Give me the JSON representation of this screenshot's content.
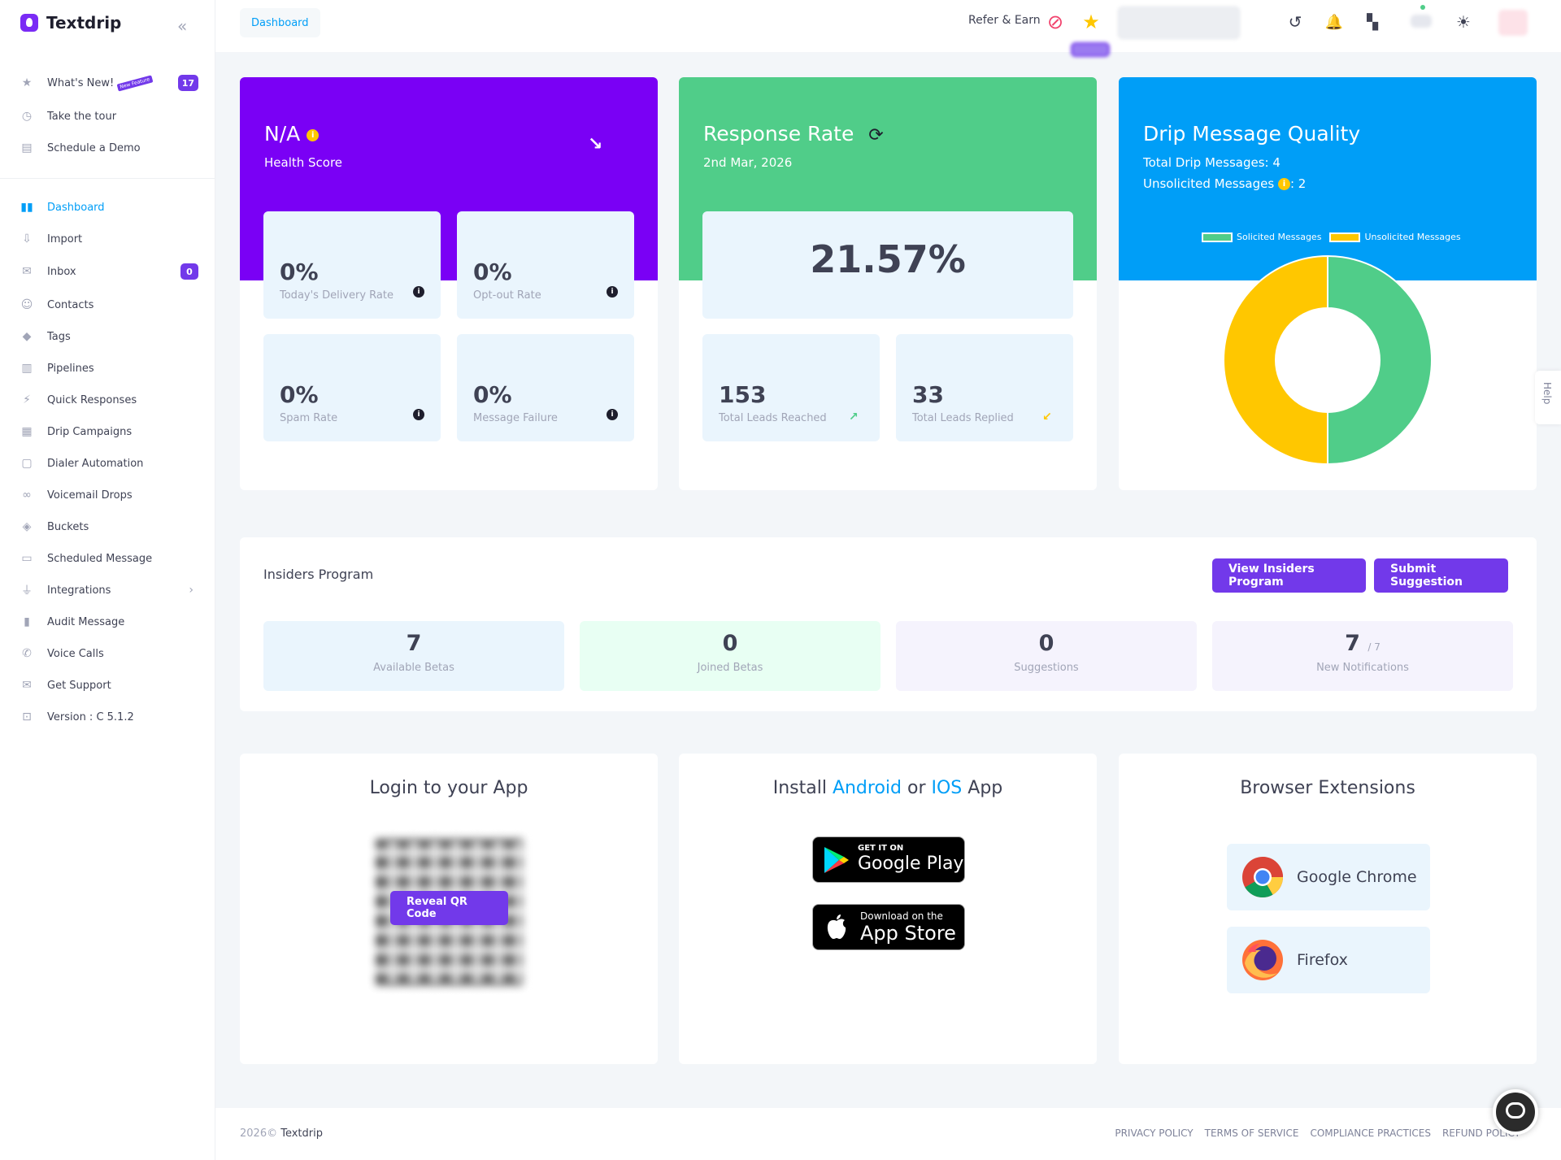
{
  "app": {
    "name": "Textdrip"
  },
  "sidebar": {
    "top_items": [
      {
        "label": "What's New!",
        "badge": "17",
        "tag": "New Feature"
      },
      {
        "label": "Take the tour"
      },
      {
        "label": "Schedule a Demo"
      }
    ],
    "items": [
      {
        "label": "Dashboard",
        "icon": "dashboard-icon",
        "active": true
      },
      {
        "label": "Import",
        "icon": "import-icon"
      },
      {
        "label": "Inbox",
        "icon": "inbox-icon",
        "badge": "0"
      },
      {
        "label": "Contacts",
        "icon": "contacts-icon"
      },
      {
        "label": "Tags",
        "icon": "tag-icon"
      },
      {
        "label": "Pipelines",
        "icon": "pipeline-icon"
      },
      {
        "label": "Quick Responses",
        "icon": "bolt-icon"
      },
      {
        "label": "Drip Campaigns",
        "icon": "calendar-icon"
      },
      {
        "label": "Dialer Automation",
        "icon": "dialer-icon"
      },
      {
        "label": "Voicemail Drops",
        "icon": "voicemail-icon"
      },
      {
        "label": "Buckets",
        "icon": "bucket-icon"
      },
      {
        "label": "Scheduled Message",
        "icon": "scheduled-icon"
      },
      {
        "label": "Integrations",
        "icon": "plug-icon"
      },
      {
        "label": "Audit Message",
        "icon": "clipboard-icon"
      },
      {
        "label": "Voice Calls",
        "icon": "phone-icon"
      },
      {
        "label": "Get Support",
        "icon": "mail-icon"
      },
      {
        "label": "Version : C 5.1.2",
        "icon": "code-icon"
      }
    ]
  },
  "topbar": {
    "breadcrumb": "Dashboard",
    "refer_label": "Refer & Earn"
  },
  "health": {
    "title": "N/A",
    "subtitle": "Health Score",
    "tiles": [
      {
        "value": "0%",
        "label": "Today's Delivery Rate"
      },
      {
        "value": "0%",
        "label": "Opt-out Rate"
      },
      {
        "value": "0%",
        "label": "Spam Rate"
      },
      {
        "value": "0%",
        "label": "Message Failure"
      }
    ]
  },
  "response": {
    "title": "Response Rate",
    "date": "2nd Mar, 2026",
    "rate": "21.57%",
    "tiles": [
      {
        "value": "153",
        "label": "Total Leads Reached"
      },
      {
        "value": "33",
        "label": "Total Leads Replied"
      }
    ]
  },
  "drip": {
    "title": "Drip Message Quality",
    "total_label": "Total Drip Messages: 4",
    "unsolicited_label": "Unsolicited Messages",
    "unsolicited_value": ": 2"
  },
  "chart_data": {
    "type": "pie",
    "title": "",
    "legend": "top",
    "categories": [
      "Solicited Messages",
      "Unsolicited Messages"
    ],
    "values": [
      2,
      2
    ],
    "colors": [
      "#50cd89",
      "#ffc700"
    ]
  },
  "insiders": {
    "title": "Insiders Program",
    "view_button": "View Insiders Program",
    "suggest_button": "Submit Suggestion",
    "stats": [
      {
        "value": "7",
        "label": "Available Betas",
        "bg": "#eaf5fd"
      },
      {
        "value": "0",
        "label": "Joined Betas",
        "bg": "#e8fff3"
      },
      {
        "value": "0",
        "label": "Suggestions",
        "bg": "#f5f3fd"
      },
      {
        "value": "7",
        "suffix": "/ 7",
        "label": "New Notifications",
        "bg": "#f5f3fd"
      }
    ]
  },
  "login_app": {
    "title": "Login to your App",
    "reveal_button": "Reveal QR Code"
  },
  "install_app": {
    "prefix": "Install ",
    "android": "Android",
    "or": " or ",
    "ios": "IOS",
    "suffix": " App",
    "google_small": "GET IT ON",
    "google_big": "Google Play",
    "apple_small": "Download on the",
    "apple_big": "App Store"
  },
  "extensions": {
    "title": "Browser Extensions",
    "items": [
      "Google Chrome",
      "Firefox"
    ]
  },
  "help_tab": "Help",
  "footer": {
    "copyright": "2026©",
    "brand": "Textdrip",
    "links": [
      "PRIVACY POLICY",
      "TERMS OF SERVICE",
      "COMPLIANCE PRACTICES",
      "REFUND POLICY"
    ]
  }
}
